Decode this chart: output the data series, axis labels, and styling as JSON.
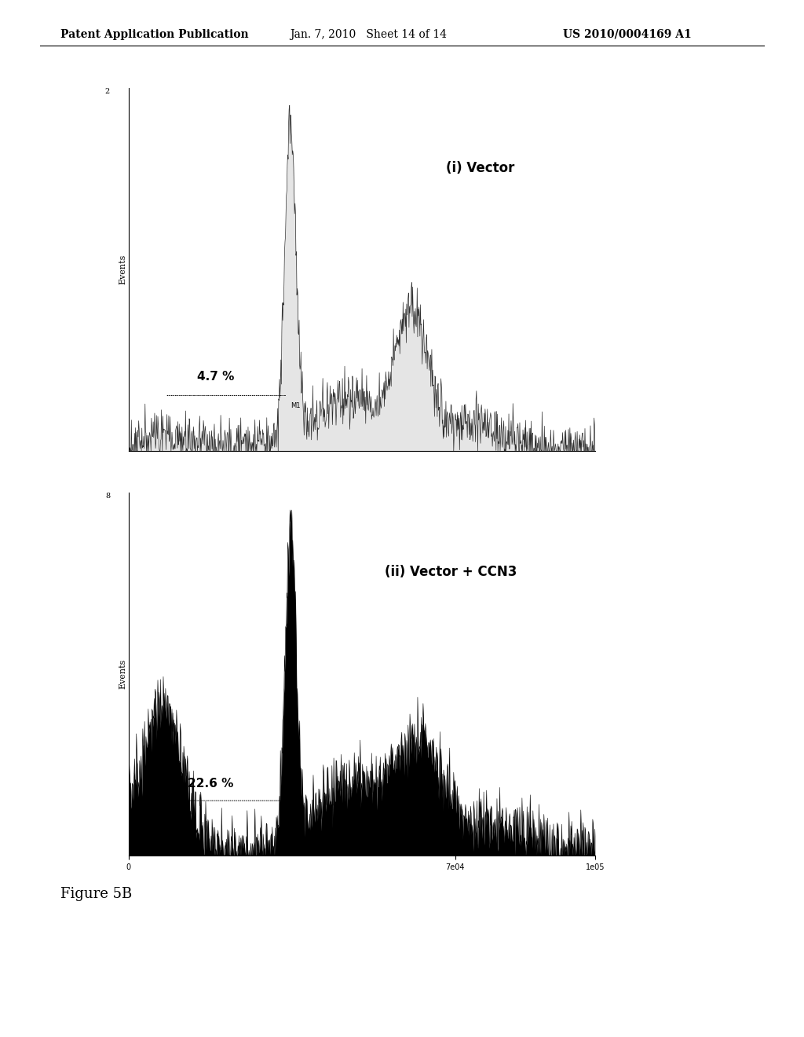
{
  "header_left": "Patent Application Publication",
  "header_center": "Jan. 7, 2010   Sheet 14 of 14",
  "header_right": "US 2010/0004169 A1",
  "figure_label": "Figure 5B",
  "panel1_label": "(i) Vector",
  "panel1_percent": "4.7 %",
  "panel2_label": "(ii) Vector + CCN3",
  "panel2_percent": "22.6 %",
  "ylabel": "Events",
  "background_color": "#ffffff",
  "text_color": "#000000",
  "header_fontsize": 10,
  "figure_label_fontsize": 13
}
